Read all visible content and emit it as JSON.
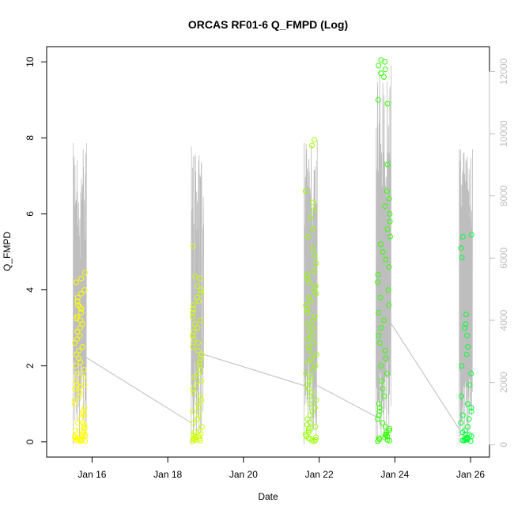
{
  "chart_data": {
    "type": "scatter",
    "title": "ORCAS RF01-6 Q_FMPD (Log)",
    "xlabel": "Date",
    "ylabel": "Q_FMPD",
    "x_tick_labels": [
      "Jan 16",
      "Jan 18",
      "Jan 20",
      "Jan 22",
      "Jan 24",
      "Jan 26"
    ],
    "x_ticks_day": [
      16,
      18,
      20,
      22,
      24,
      26
    ],
    "xlim_day": [
      14.8,
      26.5
    ],
    "y_ticks": [
      0,
      2,
      4,
      6,
      8,
      10
    ],
    "ylim": [
      -0.4,
      10.4
    ],
    "y2_ticks": [
      0,
      2000,
      4000,
      6000,
      8000,
      10000,
      12000
    ],
    "y2lim": [
      -400,
      12800
    ],
    "colors": {
      "flight_points": [
        "#ffff00",
        "#ccff00",
        "#99ff00",
        "#33ff00",
        "#00ff33"
      ],
      "altitude_line": "#bebebe",
      "axis": "#000000",
      "axis_right": "#bebebe"
    },
    "altitude_series": {
      "description_axis": "right",
      "flights": [
        {
          "start": 15.5,
          "end": 15.85,
          "peaks": [
            9700,
            9600,
            7500,
            9500,
            6300,
            9600,
            6600,
            9700
          ]
        },
        {
          "start": 18.62,
          "end": 18.95,
          "peaks": [
            9600,
            9300,
            9400,
            3000,
            7100
          ]
        },
        {
          "start": 21.6,
          "end": 21.95,
          "peaks": [
            9700,
            9600,
            7900,
            9700,
            9800
          ]
        },
        {
          "start": 23.5,
          "end": 23.9,
          "peaks": [
            10200,
            10000,
            9900,
            12100,
            11900,
            12200
          ]
        },
        {
          "start": 25.7,
          "end": 26.05,
          "peaks": [
            9500,
            9400,
            9300,
            9500
          ]
        }
      ],
      "connectors": [
        [
          15.85,
          2800,
          18.62,
          700
        ],
        [
          18.95,
          2900,
          21.6,
          1900
        ],
        [
          21.95,
          1900,
          23.5,
          900
        ],
        [
          23.9,
          3900,
          25.7,
          500
        ]
      ]
    },
    "series": [
      {
        "flight": 1,
        "x_range": [
          15.5,
          15.85
        ],
        "color": "#ffff00",
        "values": [
          0.02,
          0.03,
          0.05,
          0.08,
          0.1,
          0.12,
          0.15,
          0.2,
          0.25,
          0.3,
          0.35,
          0.4,
          0.45,
          0.5,
          0.6,
          0.7,
          0.75,
          0.8,
          0.9,
          1.0,
          1.1,
          1.2,
          1.3,
          1.4,
          1.45,
          1.5,
          1.6,
          1.7,
          1.8,
          1.9,
          2.0,
          2.1,
          2.2,
          2.3,
          2.4,
          2.5,
          2.6,
          2.7,
          2.8,
          2.9,
          3.0,
          3.1,
          3.2,
          3.25,
          3.3,
          3.4,
          3.5,
          3.55,
          3.6,
          3.7,
          3.8,
          3.9,
          4.0,
          4.2,
          4.3,
          4.45,
          0.02,
          0.04,
          0.06,
          0.1,
          0.15,
          0.2,
          0.3,
          0.5,
          1.4,
          1.5
        ]
      },
      {
        "flight": 2,
        "x_range": [
          18.62,
          18.95
        ],
        "color": "#ccff00",
        "values": [
          0.02,
          0.05,
          0.08,
          0.1,
          0.15,
          0.2,
          0.25,
          0.3,
          0.4,
          0.5,
          0.6,
          0.7,
          0.8,
          0.9,
          1.0,
          1.1,
          1.2,
          1.3,
          1.4,
          1.5,
          1.6,
          1.7,
          1.8,
          1.9,
          2.0,
          2.1,
          2.2,
          2.3,
          2.4,
          2.5,
          2.6,
          2.7,
          2.8,
          2.9,
          3.0,
          3.1,
          3.2,
          3.3,
          3.4,
          3.5,
          3.6,
          3.7,
          3.8,
          3.9,
          4.0,
          4.1,
          4.3,
          4.35,
          5.15,
          0.03,
          0.06,
          0.12,
          0.18
        ]
      },
      {
        "flight": 3,
        "x_range": [
          21.6,
          21.95
        ],
        "color": "#99ff00",
        "values": [
          0.02,
          0.05,
          0.1,
          0.15,
          0.2,
          0.3,
          0.4,
          0.5,
          0.6,
          0.7,
          0.8,
          0.9,
          1.0,
          1.1,
          1.2,
          1.3,
          1.4,
          1.5,
          1.6,
          1.7,
          1.8,
          1.9,
          2.0,
          2.1,
          2.2,
          2.3,
          2.4,
          2.5,
          2.6,
          2.7,
          2.8,
          2.9,
          3.0,
          3.1,
          3.2,
          3.3,
          3.4,
          3.5,
          3.6,
          3.7,
          3.8,
          3.9,
          4.0,
          4.1,
          4.2,
          4.3,
          4.4,
          4.5,
          4.7,
          4.9,
          5.1,
          5.4,
          5.6,
          5.9,
          6.1,
          6.3,
          6.6,
          7.8,
          7.95,
          0.03,
          0.08,
          0.12,
          0.25,
          0.35,
          0.45
        ]
      },
      {
        "flight": 4,
        "x_range": [
          23.5,
          23.9
        ],
        "color": "#33ff00",
        "values": [
          0.02,
          0.05,
          0.1,
          0.15,
          0.2,
          0.3,
          0.4,
          0.5,
          0.6,
          0.7,
          0.8,
          0.9,
          1.0,
          1.2,
          1.4,
          1.6,
          1.8,
          2.0,
          2.2,
          2.4,
          2.6,
          2.8,
          3.0,
          3.2,
          3.4,
          3.6,
          3.8,
          4.0,
          4.2,
          4.4,
          4.6,
          4.8,
          5.0,
          5.2,
          5.4,
          5.6,
          5.8,
          6.0,
          6.2,
          6.4,
          6.6,
          7.3,
          8.9,
          9.0,
          9.6,
          9.7,
          9.8,
          9.9,
          10.0,
          10.05,
          0.03,
          0.06,
          0.12,
          0.18,
          0.25,
          0.35
        ]
      },
      {
        "flight": 5,
        "x_range": [
          25.7,
          26.05
        ],
        "color": "#00ff33",
        "values": [
          0.02,
          0.03,
          0.05,
          0.08,
          0.1,
          0.12,
          0.15,
          0.18,
          0.2,
          0.25,
          0.3,
          0.4,
          0.5,
          0.6,
          0.7,
          0.8,
          0.9,
          1.0,
          1.2,
          1.5,
          1.8,
          2.0,
          2.3,
          2.5,
          2.8,
          3.0,
          3.1,
          3.35,
          4.85,
          5.1,
          5.4,
          5.45,
          0.04,
          0.06,
          0.09
        ]
      }
    ],
    "grid": false,
    "legend": "none"
  }
}
